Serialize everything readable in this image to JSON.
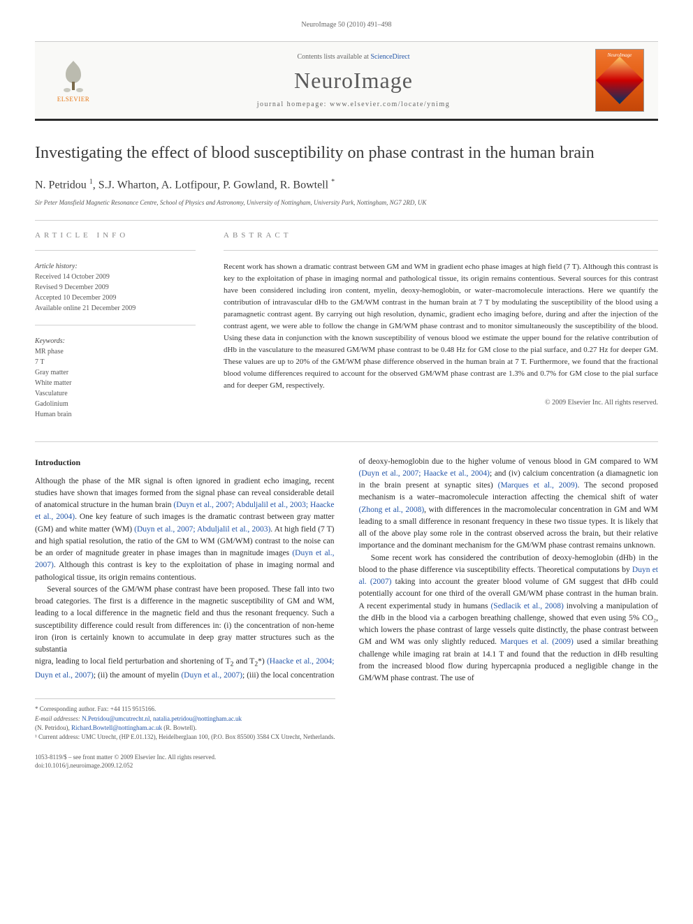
{
  "running_head": "NeuroImage 50 (2010) 491–498",
  "masthead": {
    "publisher_name": "ELSEVIER",
    "contents_prefix": "Contents lists available at ",
    "contents_link": "ScienceDirect",
    "journal_name": "NeuroImage",
    "homepage_prefix": "journal homepage: ",
    "homepage_url": "www.elsevier.com/locate/ynimg",
    "cover_title": "NeuroImage",
    "logo_color": "#e67817",
    "cover_bg_top": "#f07830",
    "cover_bg_bottom": "#c44608"
  },
  "article": {
    "title": "Investigating the effect of blood susceptibility on phase contrast in the human brain",
    "authors_html": "N. Petridou <sup>1</sup>, S.J. Wharton, A. Lotfipour, P. Gowland, R. Bowtell <sup>*</sup>",
    "affiliation": "Sir Peter Mansfield Magnetic Resonance Centre, School of Physics and Astronomy, University of Nottingham, University Park, Nottingham, NG7 2RD, UK"
  },
  "info": {
    "head": "ARTICLE INFO",
    "history_label": "Article history:",
    "received": "Received 14 October 2009",
    "revised": "Revised 9 December 2009",
    "accepted": "Accepted 10 December 2009",
    "online": "Available online 21 December 2009",
    "keywords_label": "Keywords:",
    "keywords": [
      "MR phase",
      "7 T",
      "Gray matter",
      "White matter",
      "Vasculature",
      "Gadolinium",
      "Human brain"
    ]
  },
  "abstract": {
    "head": "ABSTRACT",
    "text": "Recent work has shown a dramatic contrast between GM and WM in gradient echo phase images at high field (7 T). Although this contrast is key to the exploitation of phase in imaging normal and pathological tissue, its origin remains contentious. Several sources for this contrast have been considered including iron content, myelin, deoxy-hemoglobin, or water–macromolecule interactions. Here we quantify the contribution of intravascular dHb to the GM/WM contrast in the human brain at 7 T by modulating the susceptibility of the blood using a paramagnetic contrast agent. By carrying out high resolution, dynamic, gradient echo imaging before, during and after the injection of the contrast agent, we were able to follow the change in GM/WM phase contrast and to monitor simultaneously the susceptibility of the blood. Using these data in conjunction with the known susceptibility of venous blood we estimate the upper bound for the relative contribution of dHb in the vasculature to the measured GM/WM phase contrast to be 0.48 Hz for GM close to the pial surface, and 0.27 Hz for deeper GM. These values are up to 20% of the GM/WM phase difference observed in the human brain at 7 T. Furthermore, we found that the fractional blood volume differences required to account for the observed GM/WM phase contrast are 1.3% and 0.7% for GM close to the pial surface and for deeper GM, respectively.",
    "copyright": "© 2009 Elsevier Inc. All rights reserved."
  },
  "body": {
    "heading": "Introduction",
    "p1": "Although the phase of the MR signal is often ignored in gradient echo imaging, recent studies have shown that images formed from the signal phase can reveal considerable detail of anatomical structure in the human brain (Duyn et al., 2007; Abduljalil et al., 2003; Haacke et al., 2004). One key feature of such images is the dramatic contrast between gray matter (GM) and white matter (WM) (Duyn et al., 2007; Abduljalil et al., 2003). At high field (7 T) and high spatial resolution, the ratio of the GM to WM (GM/WM) contrast to the noise can be an order of magnitude greater in phase images than in magnitude images (Duyn et al., 2007). Although this contrast is key to the exploitation of phase in imaging normal and pathological tissue, its origin remains contentious.",
    "p2": "Several sources of the GM/WM phase contrast have been proposed. These fall into two broad categories. The first is a difference in the magnetic susceptibility of GM and WM, leading to a local difference in the magnetic field and thus the resonant frequency. Such a susceptibility difference could result from differences in: (i) the concentration of non-heme iron (iron is certainly known to accumulate in deep gray matter structures such as the substantia",
    "p3a": "nigra, leading to local field perturbation and shortening of T",
    "p3b": " and T",
    "p3c": "*) (Haacke et al., 2004; Duyn et al., 2007); (ii) the amount of myelin (Duyn et al., 2007); (iii) the local concentration of deoxy-hemoglobin due to the higher volume of venous blood in GM compared to WM (Duyn et al., 2007; Haacke et al., 2004); and (iv) calcium concentration (a diamagnetic ion in the brain present at synaptic sites) (Marques et al., 2009). The second proposed mechanism is a water–macromolecule interaction affecting the chemical shift of water (Zhong et al., 2008), with differences in the macromolecular concentration in GM and WM leading to a small difference in resonant frequency in these two tissue types. It is likely that all of the above play some role in the contrast observed across the brain, but their relative importance and the dominant mechanism for the GM/WM phase contrast remains unknown.",
    "p4": "Some recent work has considered the contribution of deoxy-hemoglobin (dHb) in the blood to the phase difference via susceptibility effects. Theoretical computations by Duyn et al. (2007) taking into account the greater blood volume of GM suggest that dHb could potentially account for one third of the overall GM/WM phase contrast in the human brain. A recent experimental study in humans (Sedlacik et al., 2008) involving a manipulation of the dHb in the blood via a carbogen breathing challenge, showed that even using 5% CO₂, which lowers the phase contrast of large vessels quite distinctly, the phase contrast between GM and WM was only slightly reduced. Marques et al. (2009) used a similar breathing challenge while imaging rat brain at 14.1 T and found that the reduction in dHb resulting from the increased blood flow during hypercapnia produced a negligible change in the GM/WM phase contrast. The use of"
  },
  "footnotes": {
    "corr_label": "* Corresponding author. Fax: +44 115 9515166.",
    "email_label": "E-mail addresses:",
    "email1": "N.Petridou@umcutrecht.nl",
    "email1_sep": ", ",
    "email2": "natalia.petridou@nottingham.ac.uk",
    "email_owner1": "(N. Petridou), ",
    "email3": "Richard.Bowtell@nottingham.ac.uk",
    "email_owner2": " (R. Bowtell).",
    "note1": "¹ Current address: UMC Utrecht, (HP E.01.132), Heidelberglaan 100, (P.O. Box 85500) 3584 CX Utrecht, Netherlands."
  },
  "footer": {
    "issn_line": "1053-8119/$ – see front matter © 2009 Elsevier Inc. All rights reserved.",
    "doi_line": "doi:10.1016/j.neuroimage.2009.12.052"
  },
  "colors": {
    "link": "#2456a8",
    "text": "#333333",
    "muted": "#666666",
    "rule": "#d0d0d0",
    "masthead_rule": "#2a2a2a"
  },
  "typography": {
    "body_fontsize_pt": 11.5,
    "abstract_fontsize_pt": 11,
    "title_fontsize_pt": 24,
    "journal_fontsize_pt": 32,
    "footnote_fontsize_pt": 9
  }
}
